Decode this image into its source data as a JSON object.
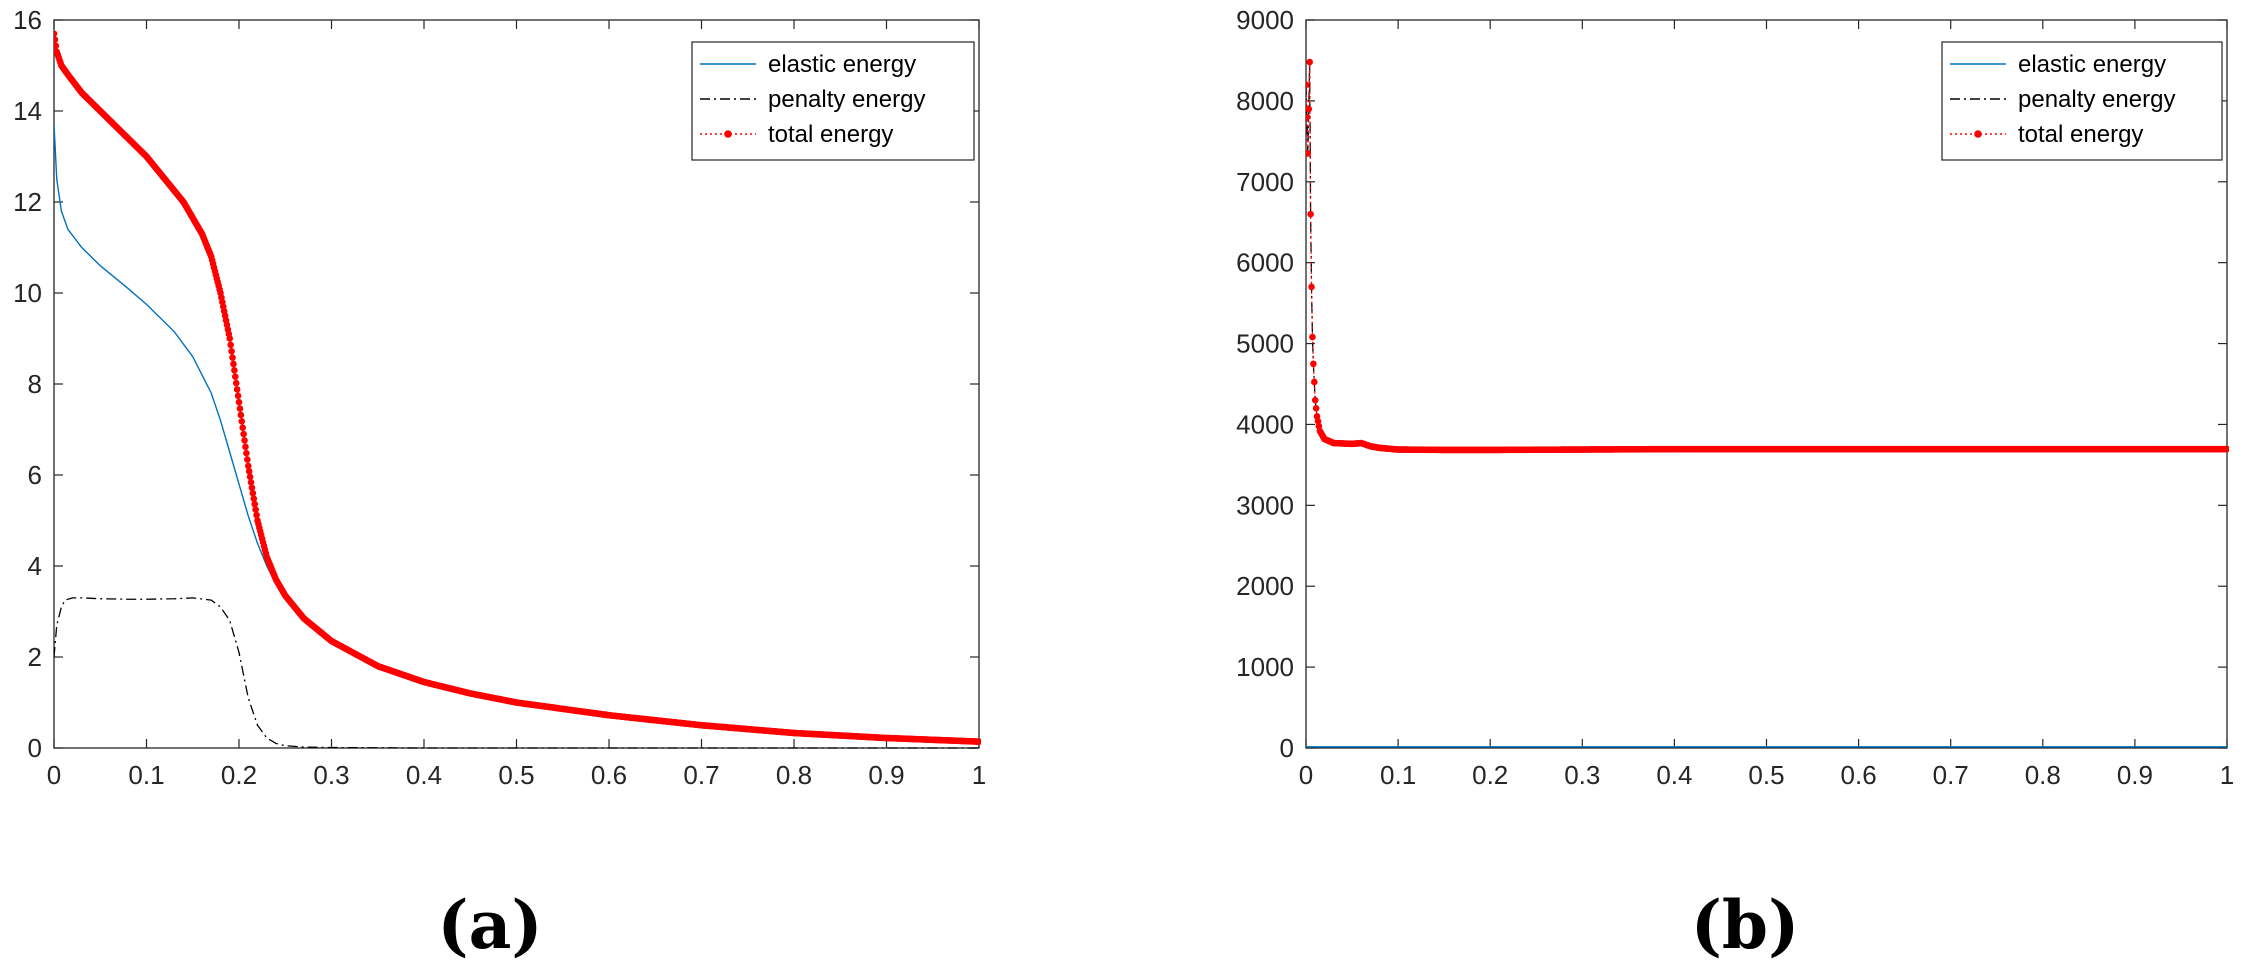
{
  "figure": {
    "panel_labels": [
      "(a)",
      "(b)"
    ],
    "colors": {
      "elastic": "#0072bd",
      "penalty": "#000000",
      "total": "#ff0000",
      "axes": "#262626"
    }
  },
  "chart_data": [
    {
      "type": "line",
      "panel": "(a)",
      "title": "",
      "xlabel": "",
      "ylabel": "",
      "xlim": [
        0,
        1
      ],
      "ylim": [
        0,
        16
      ],
      "xticks": [
        0,
        0.1,
        0.2,
        0.3,
        0.4,
        0.5,
        0.6,
        0.7,
        0.8,
        0.9,
        1
      ],
      "xtick_labels": [
        "0",
        "0.1",
        "0.2",
        "0.3",
        "0.4",
        "0.5",
        "0.6",
        "0.7",
        "0.8",
        "0.9",
        "1"
      ],
      "yticks": [
        0,
        2,
        4,
        6,
        8,
        10,
        12,
        14,
        16
      ],
      "ytick_labels": [
        "0",
        "2",
        "4",
        "6",
        "8",
        "10",
        "12",
        "14",
        "16"
      ],
      "grid": false,
      "legend": "top-right",
      "series": [
        {
          "name": "elastic energy",
          "style": "solid",
          "color": "#0072bd",
          "x": [
            0,
            0.003,
            0.008,
            0.015,
            0.03,
            0.05,
            0.08,
            0.1,
            0.13,
            0.15,
            0.17,
            0.18,
            0.19,
            0.2,
            0.21,
            0.22,
            0.23,
            0.24,
            0.25,
            0.27,
            0.3,
            0.35,
            0.4,
            0.45,
            0.5,
            0.6,
            0.7,
            0.8,
            0.9,
            1.0
          ],
          "y": [
            13.7,
            12.5,
            11.8,
            11.4,
            11.0,
            10.6,
            10.1,
            9.75,
            9.15,
            8.6,
            7.8,
            7.2,
            6.5,
            5.8,
            5.1,
            4.5,
            4.0,
            3.6,
            3.3,
            2.85,
            2.35,
            1.8,
            1.45,
            1.2,
            1.0,
            0.72,
            0.5,
            0.33,
            0.22,
            0.14
          ]
        },
        {
          "name": "penalty energy",
          "style": "dash-dot",
          "color": "#000000",
          "x": [
            0,
            0.003,
            0.008,
            0.012,
            0.02,
            0.03,
            0.05,
            0.08,
            0.1,
            0.13,
            0.15,
            0.17,
            0.18,
            0.19,
            0.2,
            0.21,
            0.22,
            0.23,
            0.24,
            0.25,
            0.27,
            0.3,
            0.35,
            0.4,
            1.0
          ],
          "y": [
            2.0,
            2.7,
            3.1,
            3.25,
            3.3,
            3.3,
            3.28,
            3.27,
            3.27,
            3.28,
            3.3,
            3.25,
            3.1,
            2.8,
            2.1,
            1.1,
            0.5,
            0.22,
            0.1,
            0.05,
            0.02,
            0.01,
            0.005,
            0.0,
            0.0
          ]
        },
        {
          "name": "total energy",
          "style": "dotted-markers",
          "color": "#ff0000",
          "x": [
            0,
            0.003,
            0.008,
            0.015,
            0.03,
            0.05,
            0.08,
            0.1,
            0.12,
            0.14,
            0.16,
            0.17,
            0.18,
            0.19,
            0.2,
            0.21,
            0.22,
            0.23,
            0.24,
            0.25,
            0.27,
            0.3,
            0.35,
            0.4,
            0.45,
            0.5,
            0.6,
            0.7,
            0.8,
            0.9,
            1.0
          ],
          "y": [
            15.7,
            15.3,
            15.0,
            14.8,
            14.4,
            14.0,
            13.4,
            13.0,
            12.5,
            12.0,
            11.3,
            10.8,
            10.0,
            9.0,
            7.6,
            6.2,
            5.0,
            4.2,
            3.7,
            3.35,
            2.85,
            2.35,
            1.8,
            1.45,
            1.2,
            1.0,
            0.72,
            0.5,
            0.33,
            0.22,
            0.14
          ]
        }
      ]
    },
    {
      "type": "line",
      "panel": "(b)",
      "title": "",
      "xlabel": "",
      "ylabel": "",
      "xlim": [
        0,
        1
      ],
      "ylim": [
        0,
        9000
      ],
      "xticks": [
        0,
        0.1,
        0.2,
        0.3,
        0.4,
        0.5,
        0.6,
        0.7,
        0.8,
        0.9,
        1
      ],
      "xtick_labels": [
        "0",
        "0.1",
        "0.2",
        "0.3",
        "0.4",
        "0.5",
        "0.6",
        "0.7",
        "0.8",
        "0.9",
        "1"
      ],
      "yticks": [
        0,
        1000,
        2000,
        3000,
        4000,
        5000,
        6000,
        7000,
        8000,
        9000
      ],
      "ytick_labels": [
        "0",
        "1000",
        "2000",
        "3000",
        "4000",
        "5000",
        "6000",
        "7000",
        "8000",
        "9000"
      ],
      "grid": false,
      "legend": "top-right",
      "series": [
        {
          "name": "elastic energy",
          "style": "solid",
          "color": "#0072bd",
          "x": [
            0,
            1
          ],
          "y": [
            15,
            15
          ]
        },
        {
          "name": "penalty energy",
          "style": "dash-dot",
          "color": "#000000",
          "x": [
            0,
            0.001,
            0.002,
            0.003,
            0.004,
            0.005,
            0.006,
            0.007,
            0.008,
            0.01,
            0.012,
            0.015,
            0.02,
            0.03,
            0.05,
            0.06,
            0.07,
            0.08,
            0.1,
            0.15,
            0.2,
            0.3,
            0.4,
            0.5,
            0.6,
            0.7,
            0.8,
            0.9,
            1.0
          ],
          "y": [
            8200,
            7800,
            7350,
            7900,
            8480,
            6600,
            5700,
            5080,
            4750,
            4300,
            4100,
            3920,
            3820,
            3770,
            3760,
            3770,
            3730,
            3710,
            3690,
            3685,
            3685,
            3690,
            3695,
            3695,
            3695,
            3695,
            3695,
            3695,
            3695
          ]
        },
        {
          "name": "total energy",
          "style": "dotted-markers",
          "color": "#ff0000",
          "x": [
            0,
            0.001,
            0.002,
            0.003,
            0.004,
            0.005,
            0.006,
            0.007,
            0.008,
            0.01,
            0.012,
            0.015,
            0.02,
            0.03,
            0.05,
            0.06,
            0.07,
            0.08,
            0.1,
            0.15,
            0.2,
            0.3,
            0.4,
            0.5,
            0.6,
            0.7,
            0.8,
            0.9,
            1.0
          ],
          "y": [
            8200,
            7800,
            7350,
            7900,
            8480,
            6600,
            5700,
            5080,
            4750,
            4300,
            4100,
            3920,
            3820,
            3770,
            3760,
            3770,
            3730,
            3710,
            3690,
            3685,
            3685,
            3690,
            3695,
            3695,
            3695,
            3695,
            3695,
            3695,
            3695
          ]
        }
      ]
    }
  ]
}
